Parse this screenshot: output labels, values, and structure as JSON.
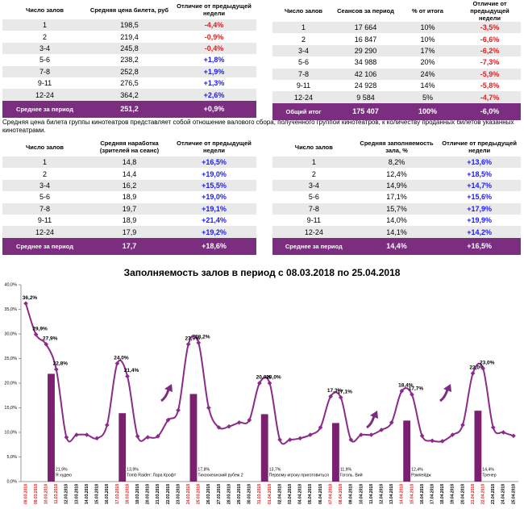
{
  "tables": [
    {
      "headers": [
        "Число залов",
        "Средняя цена билета, руб",
        "Отличие от предыдущей недели"
      ],
      "rows": [
        [
          "1",
          "198,5",
          "-4,4%"
        ],
        [
          "2",
          "219,4",
          "-0,9%"
        ],
        [
          "3-4",
          "245,8",
          "-0,4%"
        ],
        [
          "5-6",
          "238,2",
          "+1,8%"
        ],
        [
          "7-8",
          "252,8",
          "+1,9%"
        ],
        [
          "9-11",
          "276,5",
          "+1,3%"
        ],
        [
          "12-24",
          "364,2",
          "+2,6%"
        ]
      ],
      "footer": [
        "Среднее за период",
        "251,2",
        "+0,9%"
      ]
    },
    {
      "headers": [
        "Число залов",
        "Сеансов за период",
        "% от итога",
        "Отличие от предыдущей недели"
      ],
      "rows": [
        [
          "1",
          "17 664",
          "10%",
          "-3,5%"
        ],
        [
          "2",
          "16 847",
          "10%",
          "-6,6%"
        ],
        [
          "3-4",
          "29 290",
          "17%",
          "-6,2%"
        ],
        [
          "5-6",
          "34 988",
          "20%",
          "-7,3%"
        ],
        [
          "7-8",
          "42 106",
          "24%",
          "-5,9%"
        ],
        [
          "9-11",
          "24 928",
          "14%",
          "-5,8%"
        ],
        [
          "12-24",
          "9 584",
          "5%",
          "-4,7%"
        ]
      ],
      "footer": [
        "Общий итог",
        "175 407",
        "100%",
        "-6,0%"
      ]
    },
    {
      "headers": [
        "Число залов",
        "Средняя наработка (зрителей на сеанс)",
        "Отличие от предыдущей недели"
      ],
      "rows": [
        [
          "1",
          "14,8",
          "+16,5%"
        ],
        [
          "2",
          "14,4",
          "+19,0%"
        ],
        [
          "3-4",
          "16,2",
          "+15,5%"
        ],
        [
          "5-6",
          "18,9",
          "+19,0%"
        ],
        [
          "7-8",
          "19,7",
          "+19,1%"
        ],
        [
          "9-11",
          "18,9",
          "+21,4%"
        ],
        [
          "12-24",
          "17,9",
          "+19,2%"
        ]
      ],
      "footer": [
        "Среднее за период",
        "17,7",
        "+18,6%"
      ]
    },
    {
      "headers": [
        "Число залов",
        "Средняя заполняемость зала, %",
        "Отличие от предыдущей недели"
      ],
      "rows": [
        [
          "1",
          "8,2%",
          "+13,6%"
        ],
        [
          "2",
          "12,4%",
          "+18,5%"
        ],
        [
          "3-4",
          "14,9%",
          "+14,7%"
        ],
        [
          "5-6",
          "17,1%",
          "+15,6%"
        ],
        [
          "7-8",
          "15,7%",
          "+17,9%"
        ],
        [
          "9-11",
          "14,0%",
          "+19,9%"
        ],
        [
          "12-24",
          "14,1%",
          "+14,2%"
        ]
      ],
      "footer": [
        "Среднее за период",
        "14,4%",
        "+16,5%"
      ]
    }
  ],
  "note": "Средняя цена билета группы кинотеатров представляет собой отношение валового сбора, полученного группой кинотеатров, к количеству проданных билетов указанных кинотеатрами.",
  "chart_data": {
    "type": "combo",
    "title": "Заполняемость залов в период с 08.03.2018 по 25.04.2018",
    "categories": [
      "08.03.2018",
      "09.03.2018",
      "10.03.2018",
      "11.03.2018",
      "12.03.2018",
      "13.03.2018",
      "14.03.2018",
      "15.03.2018",
      "16.03.2018",
      "17.03.2018",
      "18.03.2018",
      "19.03.2018",
      "20.03.2018",
      "21.03.2018",
      "22.03.2018",
      "23.03.2018",
      "24.03.2018",
      "25.03.2018",
      "26.03.2018",
      "27.03.2018",
      "28.03.2018",
      "29.03.2018",
      "30.03.2018",
      "31.03.2018",
      "01.04.2018",
      "02.04.2018",
      "03.04.2018",
      "04.04.2018",
      "05.04.2018",
      "06.04.2018",
      "07.04.2018",
      "08.04.2018",
      "09.04.2018",
      "10.04.2018",
      "11.04.2018",
      "12.04.2018",
      "13.04.2018",
      "14.04.2018",
      "15.04.2018",
      "16.04.2018",
      "17.04.2018",
      "18.04.2018",
      "19.04.2018",
      "20.04.2018",
      "21.04.2018",
      "22.04.2018",
      "23.04.2018",
      "24.04.2018",
      "25.04.2018"
    ],
    "category_colors": [
      "#e02020",
      "#e02020",
      "#e02020",
      "#e02020",
      "#000",
      "#000",
      "#000",
      "#000",
      "#000",
      "#e02020",
      "#e02020",
      "#000",
      "#000",
      "#000",
      "#000",
      "#000",
      "#e02020",
      "#e02020",
      "#000",
      "#000",
      "#000",
      "#000",
      "#000",
      "#e02020",
      "#e02020",
      "#000",
      "#000",
      "#000",
      "#000",
      "#000",
      "#e02020",
      "#e02020",
      "#000",
      "#000",
      "#000",
      "#000",
      "#000",
      "#e02020",
      "#e02020",
      "#000",
      "#000",
      "#000",
      "#000",
      "#000",
      "#e02020",
      "#e02020",
      "#000",
      "#000",
      "#000"
    ],
    "line": {
      "color": "#8b2a8b",
      "values": [
        36.2,
        29.9,
        27.9,
        22.8,
        9.0,
        9.5,
        9.5,
        8.8,
        11.5,
        24.0,
        21.4,
        9.2,
        9.0,
        9.2,
        12.5,
        14.5,
        27.9,
        28.2,
        15.0,
        11.0,
        11.2,
        12.0,
        12.5,
        20.0,
        20.0,
        8.5,
        8.5,
        8.8,
        9.5,
        11.0,
        17.3,
        17.1,
        8.5,
        9.5,
        9.5,
        10.5,
        12.0,
        18.4,
        17.7,
        9.3,
        8.3,
        8.2,
        9.5,
        11.5,
        22.0,
        23.0,
        11.0,
        10.0,
        9.3
      ],
      "value_labels": [
        "36,2%",
        "29,9%",
        "27,9%",
        "22,8%",
        null,
        null,
        null,
        null,
        null,
        "24,0%",
        "21,4%",
        null,
        null,
        null,
        null,
        null,
        "27,9%",
        "28,2%",
        null,
        null,
        null,
        null,
        null,
        "20,0%",
        "20,0%",
        null,
        null,
        null,
        null,
        null,
        "17,3%",
        "17,1%",
        null,
        null,
        null,
        null,
        null,
        "18,4%",
        "17,7%",
        null,
        null,
        null,
        null,
        null,
        "22,0%",
        "23,0%",
        null,
        null,
        null
      ]
    },
    "bars": {
      "color": "#7b1f6f",
      "values": [
        null,
        null,
        21.9,
        null,
        null,
        null,
        null,
        null,
        null,
        13.9,
        null,
        null,
        null,
        null,
        null,
        null,
        17.8,
        null,
        null,
        null,
        null,
        null,
        null,
        13.7,
        null,
        null,
        null,
        null,
        null,
        null,
        11.9,
        null,
        null,
        null,
        null,
        null,
        null,
        12.4,
        null,
        null,
        null,
        null,
        null,
        null,
        14.4,
        null,
        null,
        null,
        null
      ],
      "value_labels": [
        null,
        null,
        "21,9%",
        null,
        null,
        null,
        null,
        null,
        null,
        "13,9%",
        null,
        null,
        null,
        null,
        null,
        null,
        "17,8%",
        null,
        null,
        null,
        null,
        null,
        null,
        "13,7%",
        null,
        null,
        null,
        null,
        null,
        null,
        "11,9%",
        null,
        null,
        null,
        null,
        null,
        null,
        "12,4%",
        null,
        null,
        null,
        null,
        null,
        null,
        "14,4%",
        null,
        null,
        null,
        null
      ],
      "annotations": [
        null,
        null,
        "Я худею",
        null,
        null,
        null,
        null,
        null,
        null,
        "Tomb Raider: Лара Крофт",
        null,
        null,
        null,
        null,
        null,
        null,
        "Тихоокеанский рубеж 2",
        null,
        null,
        null,
        null,
        null,
        null,
        "Первому игроку приготовиться",
        null,
        null,
        null,
        null,
        null,
        null,
        "Гоголь. Вий",
        null,
        null,
        null,
        null,
        null,
        null,
        "Рэмпейдж",
        null,
        null,
        null,
        null,
        null,
        null,
        "Тренер",
        null,
        null,
        null,
        null
      ]
    },
    "ylim": [
      0,
      40
    ],
    "yticks": [
      {
        "value": 0,
        "label": "0,0%"
      },
      {
        "value": 5,
        "label": "5,0%"
      },
      {
        "value": 10,
        "label": "10,0%"
      },
      {
        "value": 15,
        "label": "15,0%"
      },
      {
        "value": 20,
        "label": "20,0%"
      },
      {
        "value": 25,
        "label": "25,0%"
      },
      {
        "value": 30,
        "label": "30,0%"
      },
      {
        "value": 35,
        "label": "35,0%"
      },
      {
        "value": 40,
        "label": "40,0%"
      }
    ]
  }
}
